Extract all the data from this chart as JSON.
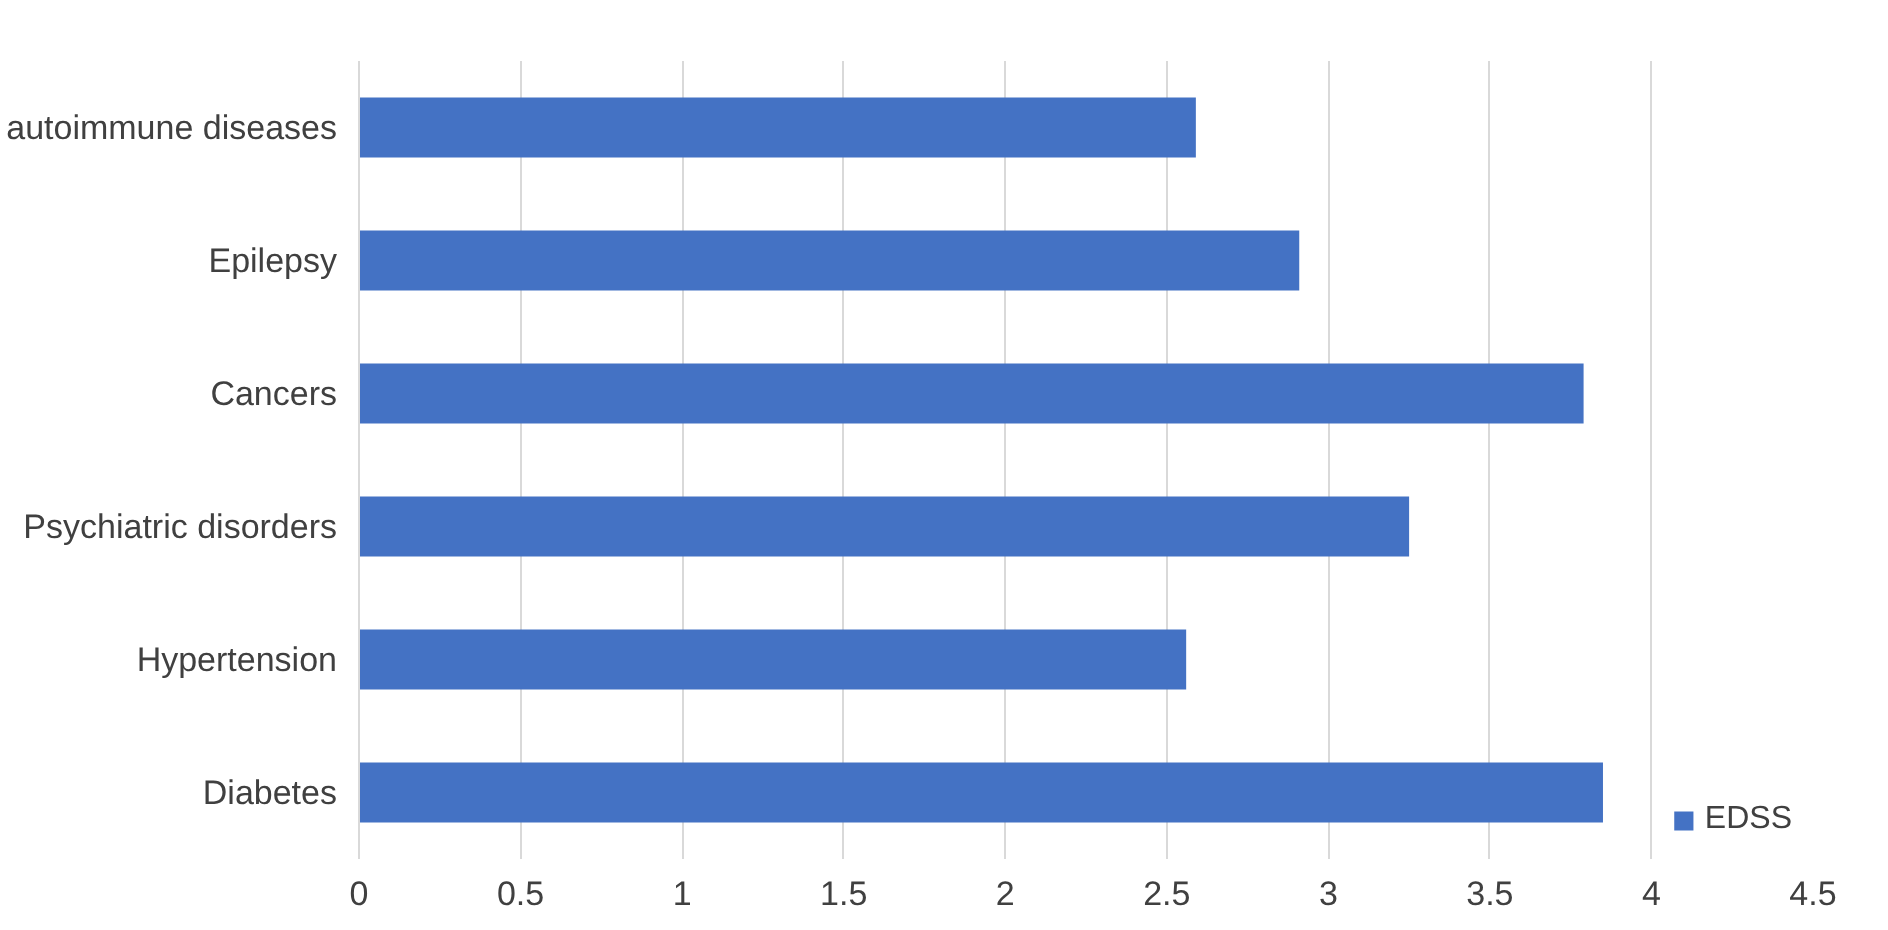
{
  "chart_data": {
    "type": "bar",
    "orientation": "horizontal",
    "categories": [
      "autoimmune diseases",
      "Epilepsy",
      "Cancers",
      "Psychiatric disorders",
      "Hypertension",
      "Diabetes"
    ],
    "series": [
      {
        "name": "EDSS",
        "color": "#4472c4",
        "values": [
          2.59,
          2.91,
          3.79,
          3.25,
          2.56,
          3.85
        ]
      }
    ],
    "xlim": [
      0,
      4.5
    ],
    "xticks": [
      0,
      0.5,
      1,
      1.5,
      2,
      2.5,
      3,
      3.5,
      4,
      4.5
    ],
    "grid": "x",
    "legend": "bottom"
  }
}
